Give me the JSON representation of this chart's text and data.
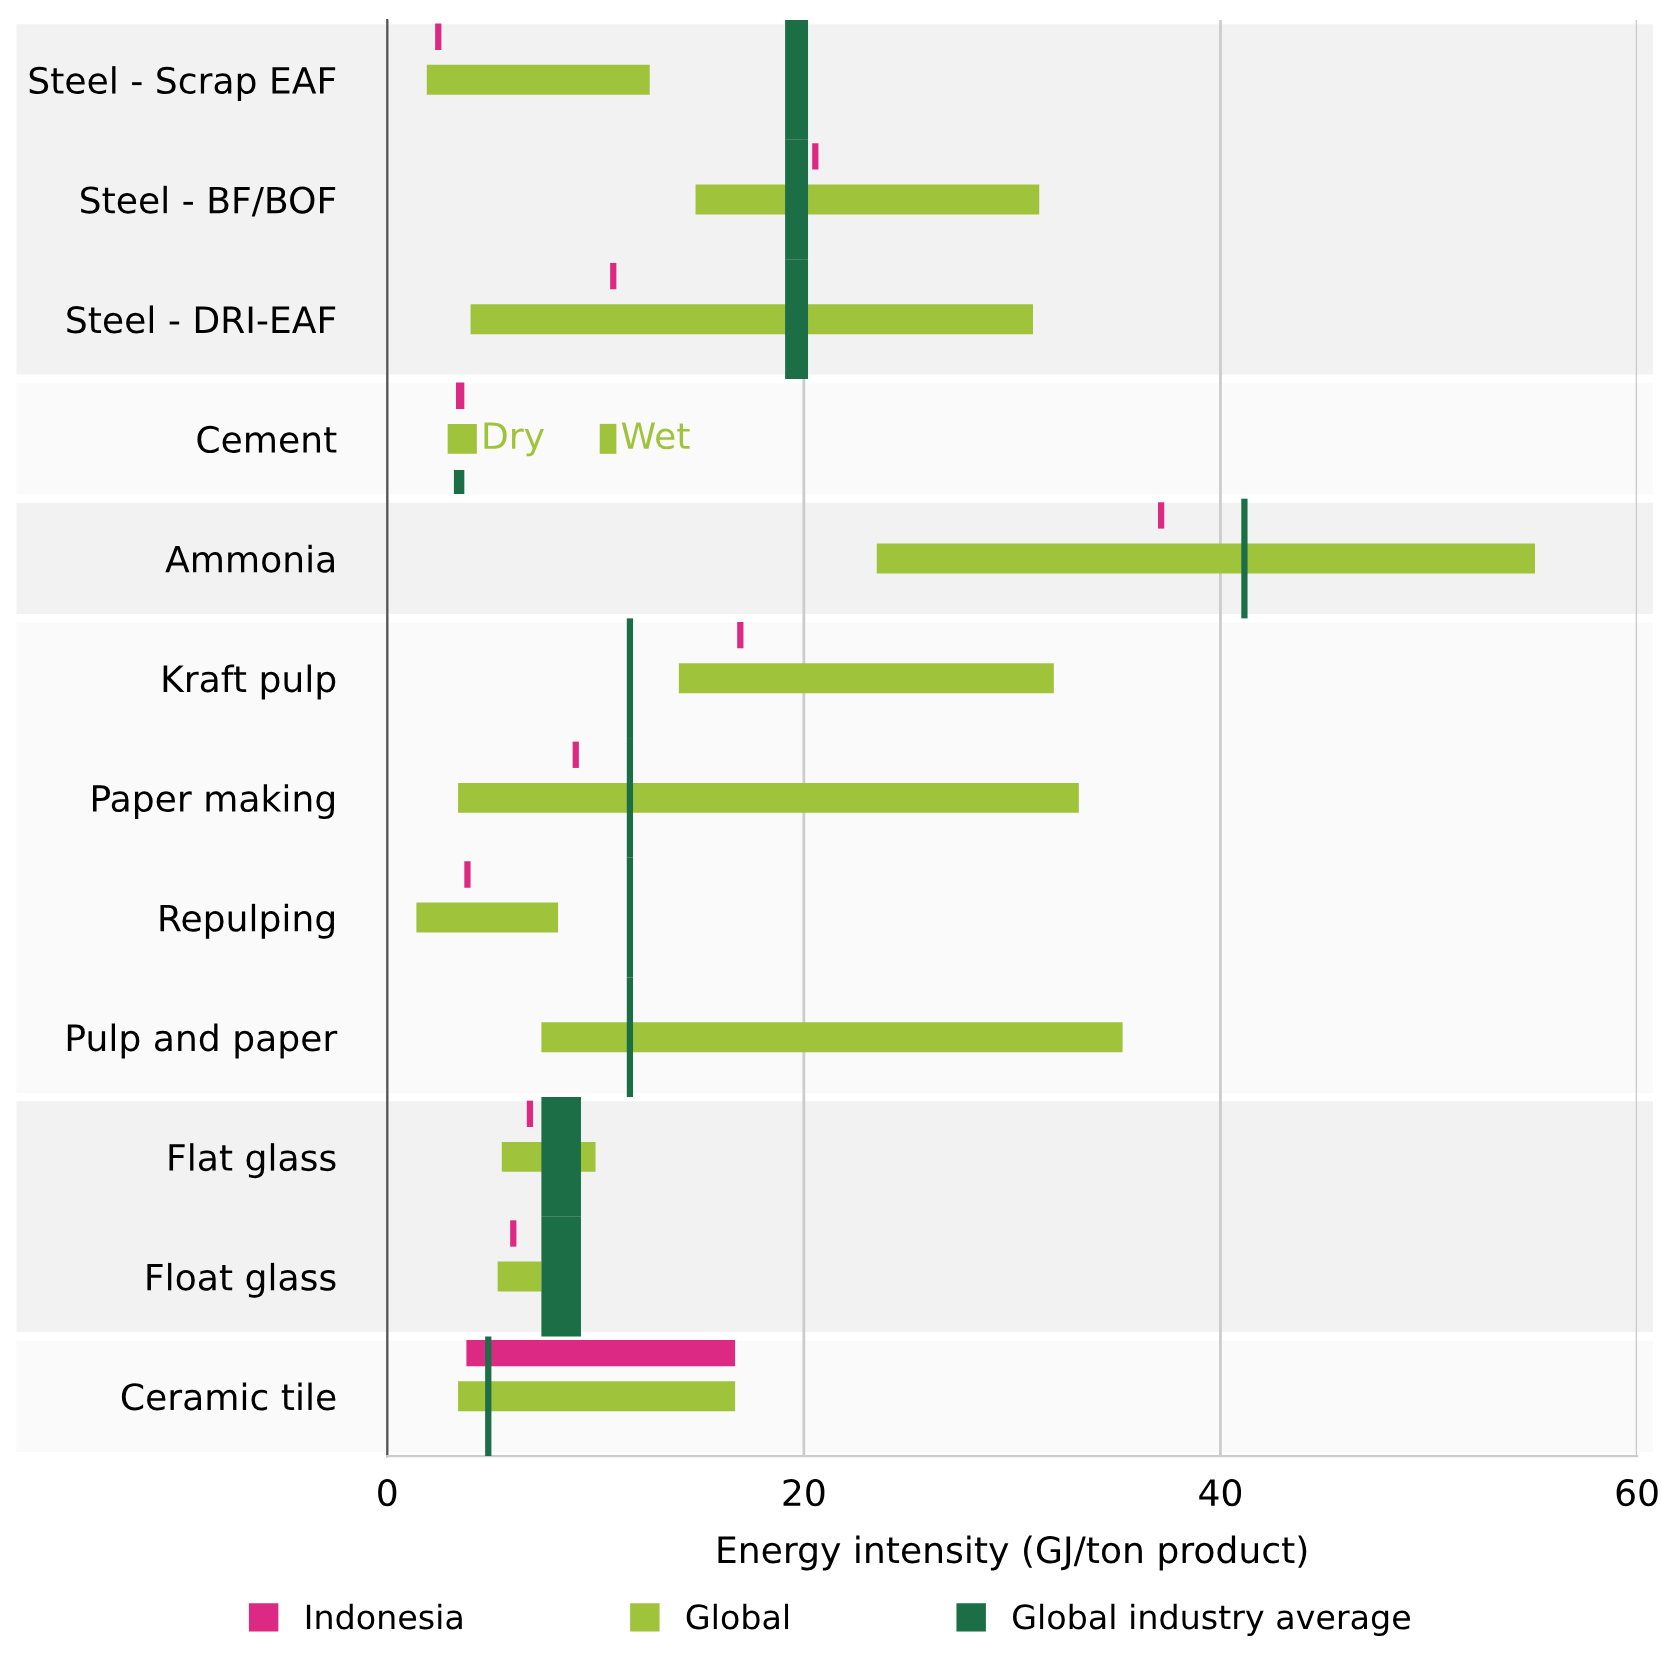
{
  "chart_data": {
    "type": "bar",
    "orientation": "horizontal",
    "xlabel": "Energy intensity (GJ/ton product)",
    "categories": [
      "Steel - Scrap EAF",
      "Steel - BF/BOF",
      "Steel - DRI-EAF",
      "Cement",
      "Ammonia",
      "Kraft pulp",
      "Paper making",
      "Repulping",
      "Pulp and paper",
      "Flat glass",
      "Float glass",
      "Ceramic tile"
    ],
    "series": [
      {
        "name": "Global industry average",
        "color": "#1b6e45",
        "base": [
          19.1,
          19.1,
          19.1,
          3.2,
          41.0,
          11.5,
          11.5,
          11.5,
          11.5,
          7.4,
          7.4,
          4.7
        ],
        "values": [
          1.1,
          1.1,
          1.1,
          0.5,
          0.3,
          0.3,
          0.3,
          0.3,
          0.3,
          1.9,
          1.9,
          0.3
        ]
      },
      {
        "name": "Global",
        "color": "#9fc33b",
        "base": [
          1.9,
          14.8,
          4.0,
          2.9,
          23.5,
          14.0,
          3.4,
          1.4,
          7.4,
          5.5,
          5.3,
          3.4
        ],
        "values": [
          10.7,
          16.5,
          27.0,
          1.4,
          31.6,
          18.0,
          29.8,
          6.8,
          27.9,
          4.5,
          2.1,
          13.3
        ]
      },
      {
        "color": "#9fc33b",
        "base": [
          null,
          null,
          null,
          10.2,
          null,
          null,
          null,
          null,
          null,
          null,
          null,
          null
        ],
        "values": [
          null,
          null,
          null,
          0.8,
          null,
          null,
          null,
          null,
          null,
          null,
          null,
          null
        ]
      },
      {
        "name": "Indonesia",
        "color": "#dc2a84",
        "base": [
          2.3,
          20.4,
          10.7,
          3.3,
          37.0,
          16.8,
          8.9,
          3.7,
          null,
          6.7,
          5.9,
          3.8
        ],
        "values": [
          0.3,
          0.3,
          0.3,
          0.4,
          0.3,
          0.3,
          0.3,
          0.3,
          null,
          0.3,
          0.3,
          12.9
        ]
      }
    ],
    "annotations": [
      {
        "text": "Dry",
        "x": 4.3,
        "y": "Cement"
      },
      {
        "text": "Wet",
        "x": 11.0,
        "y": "Cement"
      }
    ],
    "xlim": [
      0,
      60
    ],
    "xticks": [
      0,
      20,
      40,
      60
    ],
    "grid": "x",
    "legend": "bottom"
  }
}
